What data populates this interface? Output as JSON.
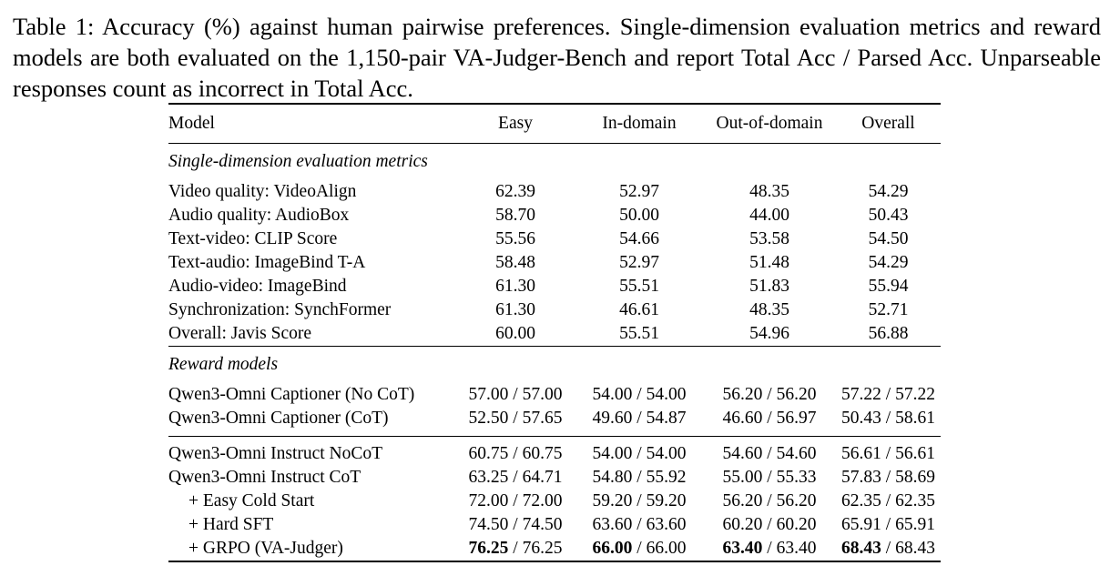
{
  "caption": "Table 1: Accuracy (%) against human pairwise preferences. Single-dimension evaluation metrics and reward models are both evaluated on the 1,150-pair VA-Judger-Bench and report Total Acc / Parsed Acc. Unparseable responses count as incorrect in Total Acc.",
  "table": {
    "headers": [
      "Model",
      "Easy",
      "In-domain",
      "Out-of-domain",
      "Overall"
    ],
    "section1_title": "Single-dimension evaluation metrics",
    "section1_rows": [
      [
        "Video quality: VideoAlign",
        "62.39",
        "52.97",
        "48.35",
        "54.29"
      ],
      [
        "Audio quality: AudioBox",
        "58.70",
        "50.00",
        "44.00",
        "50.43"
      ],
      [
        "Text-video: CLIP Score",
        "55.56",
        "54.66",
        "53.58",
        "54.50"
      ],
      [
        "Text-audio: ImageBind T-A",
        "58.48",
        "52.97",
        "51.48",
        "54.29"
      ],
      [
        "Audio-video: ImageBind",
        "61.30",
        "55.51",
        "51.83",
        "55.94"
      ],
      [
        "Synchronization: SynchFormer",
        "61.30",
        "46.61",
        "48.35",
        "52.71"
      ],
      [
        "Overall: Javis Score",
        "60.00",
        "55.51",
        "54.96",
        "56.88"
      ]
    ],
    "section2_title": "Reward models",
    "section2_rows": [
      [
        "Qwen3-Omni Captioner (No CoT)",
        "57.00 / 57.00",
        "54.00 / 54.00",
        "56.20 / 56.20",
        "57.22 / 57.22"
      ],
      [
        "Qwen3-Omni Captioner (CoT)",
        "52.50 / 57.65",
        "49.60 / 54.87",
        "46.60 / 56.97",
        "50.43 / 58.61"
      ]
    ],
    "section3_rows": [
      [
        "Qwen3-Omni Instruct NoCoT",
        "60.75 / 60.75",
        "54.00 / 54.00",
        "54.60 / 54.60",
        "56.61 / 56.61"
      ],
      [
        "Qwen3-Omni Instruct CoT",
        "63.25 / 64.71",
        "54.80 / 55.92",
        "55.00 / 55.33",
        "57.83 / 58.69"
      ],
      [
        "+ Easy Cold Start",
        "72.00 / 72.00",
        "59.20 / 59.20",
        "56.20 / 56.20",
        "62.35 / 62.35"
      ],
      [
        "+ Hard SFT",
        "74.50 / 74.50",
        "63.60 / 63.60",
        "60.20 / 60.20",
        "65.91 / 65.91"
      ]
    ],
    "final_row": {
      "model": "+ GRPO (VA-Judger)",
      "easy_bold": "76.25",
      "easy_rest": " / 76.25",
      "indomain_bold": "66.00",
      "indomain_rest": " / 66.00",
      "ood_bold": "63.40",
      "ood_rest": " / 63.40",
      "overall_bold": "68.43",
      "overall_rest": " / 68.43"
    }
  }
}
